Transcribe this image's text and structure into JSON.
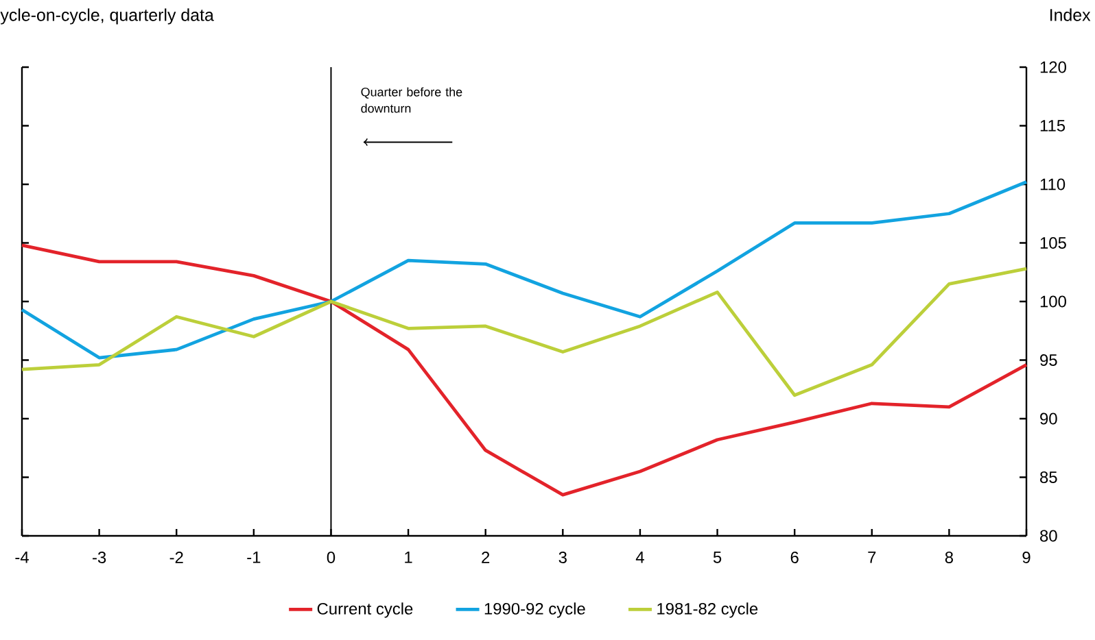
{
  "chart_data": {
    "type": "line",
    "title": "ycle-on-cycle, quarterly data",
    "ylabel": "Index",
    "annotations": [
      "Quarter before the downturn"
    ],
    "x": [
      -4,
      -3,
      -2,
      -1,
      0,
      1,
      2,
      3,
      4,
      5,
      6,
      7,
      8,
      9
    ],
    "xlim": [
      -4,
      9
    ],
    "xticks": [
      -4,
      -3,
      -2,
      -1,
      0,
      1,
      2,
      3,
      4,
      5,
      6,
      7,
      8,
      9
    ],
    "ylim": [
      80,
      120
    ],
    "yticks": [
      80,
      85,
      90,
      95,
      100,
      105,
      110,
      115,
      120
    ],
    "ref_lines": [
      {
        "axis": "x",
        "value": 0,
        "color": "#000000"
      }
    ],
    "legend": "bottom",
    "grid": false,
    "marker": "none",
    "line_style": "solid",
    "series": [
      {
        "name": "Current cycle",
        "color": "#e3232a",
        "values": [
          104.8,
          103.4,
          103.4,
          102.2,
          100,
          95.9,
          87.3,
          83.5,
          85.5,
          88.2,
          89.7,
          91.3,
          91.0,
          94.6
        ]
      },
      {
        "name": "1990-92 cycle",
        "color": "#12a3e0",
        "values": [
          99.3,
          95.2,
          95.9,
          98.5,
          100,
          103.5,
          103.2,
          100.7,
          98.7,
          102.6,
          106.7,
          106.7,
          107.5,
          110.2
        ]
      },
      {
        "name": "1981-82 cycle",
        "color": "#bccf3a",
        "values": [
          94.2,
          94.6,
          98.7,
          97.0,
          100,
          97.7,
          97.9,
          95.7,
          97.9,
          100.8,
          92.0,
          94.6,
          101.5,
          102.8
        ]
      }
    ]
  }
}
